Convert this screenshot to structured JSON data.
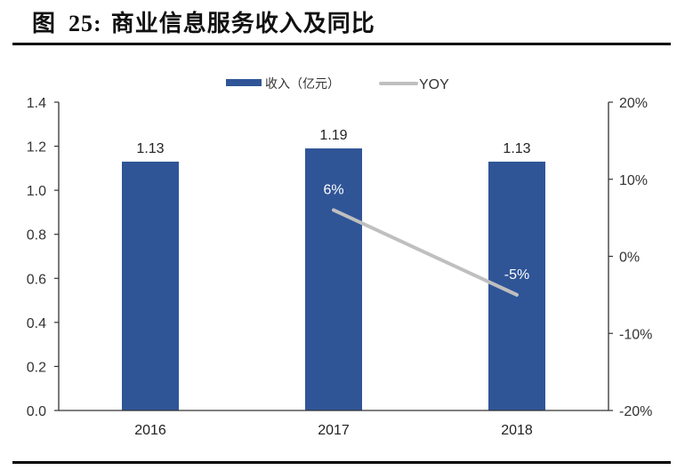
{
  "figure": {
    "label": "图",
    "number": "25:",
    "title": "商业信息服务收入及同比"
  },
  "chart_data": {
    "type": "bar",
    "title": "商业信息服务收入及同比",
    "categories": [
      "2016",
      "2017",
      "2018"
    ],
    "series": [
      {
        "name": "收入（亿元）",
        "type": "bar",
        "axis": "left",
        "values": [
          1.13,
          1.19,
          1.13
        ],
        "labels": [
          "1.13",
          "1.19",
          "1.13"
        ],
        "color": "#2F5597"
      },
      {
        "name": "YOY",
        "type": "line",
        "axis": "right",
        "values": [
          null,
          6,
          -5
        ],
        "labels": [
          "",
          "6%",
          "-5%"
        ],
        "unit": "%",
        "color": "#BFBFBF"
      }
    ],
    "left_axis": {
      "ylim": [
        0,
        1.4
      ],
      "ticks": [
        "0.0",
        "0.2",
        "0.4",
        "0.6",
        "0.8",
        "1.0",
        "1.2",
        "1.4"
      ]
    },
    "right_axis": {
      "ylim": [
        -20,
        20
      ],
      "ticks": [
        "-20%",
        "-10%",
        "0%",
        "10%",
        "20%"
      ]
    },
    "xlabel": "",
    "ylabel": "",
    "legend_position": "top",
    "grid": false
  }
}
